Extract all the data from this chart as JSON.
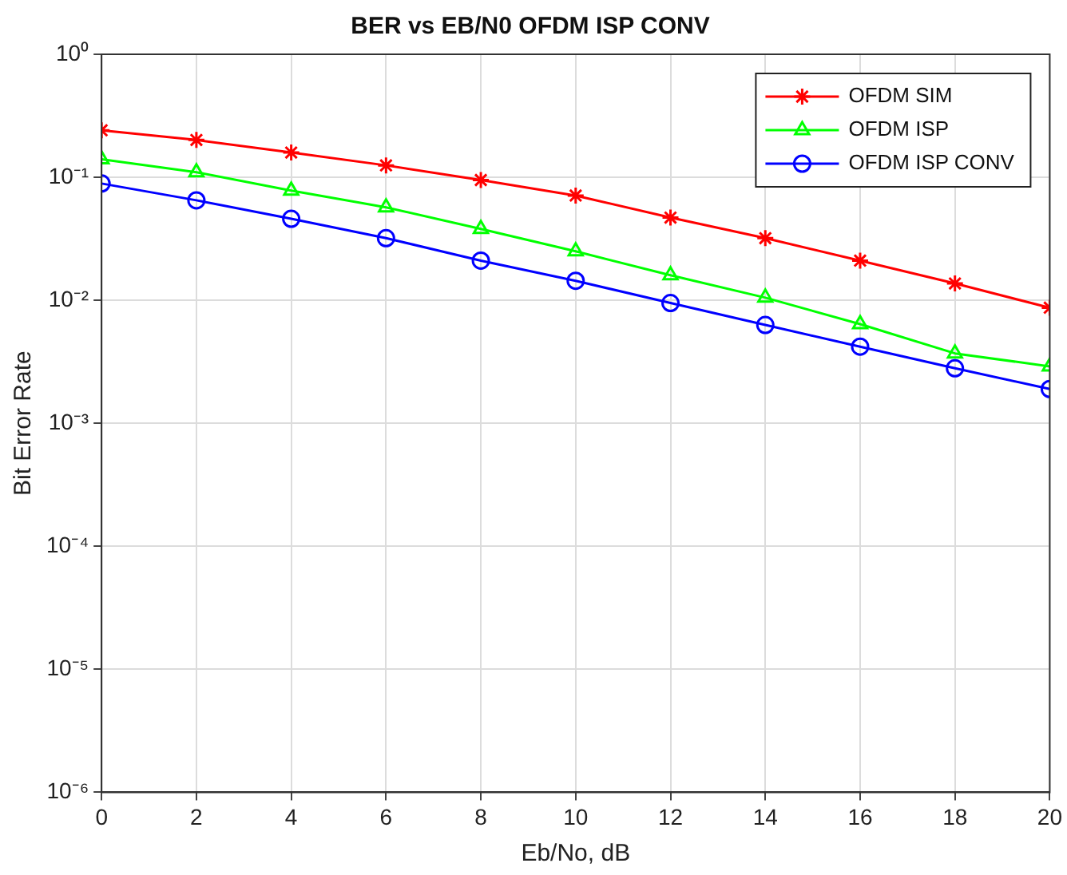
{
  "chart_data": {
    "type": "line",
    "title": "BER vs EB/N0 OFDM ISP CONV",
    "xlabel": "Eb/No, dB",
    "ylabel": "Bit Error Rate",
    "x": [
      0,
      2,
      4,
      6,
      8,
      10,
      12,
      14,
      16,
      18,
      20
    ],
    "series": [
      {
        "name": "OFDM SIM",
        "color": "#ff0000",
        "marker": "cross",
        "values": [
          0.241,
          0.201,
          0.159,
          0.125,
          0.095,
          0.071,
          0.047,
          0.032,
          0.021,
          0.0137,
          0.0087
        ]
      },
      {
        "name": "OFDM ISP",
        "color": "#00ff00",
        "marker": "triangle",
        "values": [
          0.14,
          0.11,
          0.078,
          0.057,
          0.038,
          0.025,
          0.016,
          0.0105,
          0.0064,
          0.0037,
          0.0029
        ]
      },
      {
        "name": "OFDM ISP CONV",
        "color": "#0000ff",
        "marker": "circle",
        "values": [
          0.089,
          0.065,
          0.046,
          0.032,
          0.021,
          0.0144,
          0.0095,
          0.0063,
          0.0042,
          0.0028,
          0.0019
        ]
      }
    ],
    "log": "y",
    "xlim": [
      0,
      20
    ],
    "xticks": [
      0,
      2,
      4,
      6,
      8,
      10,
      12,
      14,
      16,
      18,
      20
    ],
    "ylim": [
      1e-06,
      1
    ],
    "yticks": [
      {
        "value": 1e-06,
        "label": "10⁻⁶"
      },
      {
        "value": 1e-05,
        "label": "10⁻⁵"
      },
      {
        "value": 0.0001,
        "label": "10⁻⁴"
      },
      {
        "value": 0.001,
        "label": "10⁻³"
      },
      {
        "value": 0.01,
        "label": "10⁻²"
      },
      {
        "value": 0.1,
        "label": "10⁻¹"
      },
      {
        "value": 1,
        "label": "10⁰"
      }
    ],
    "grid": true,
    "legend": "top right",
    "line_style": "solid"
  }
}
